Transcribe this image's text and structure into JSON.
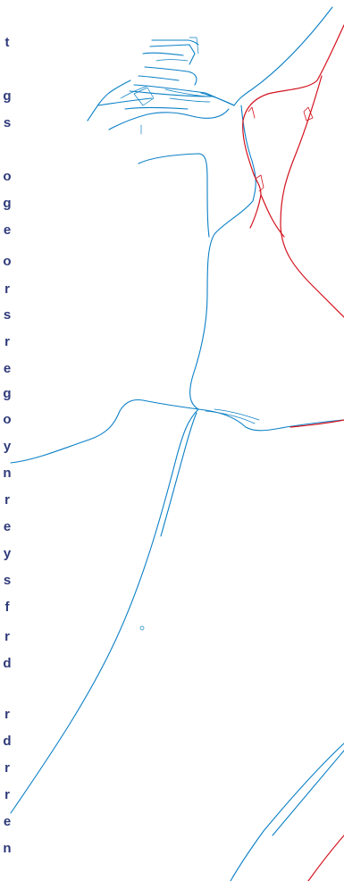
{
  "colors": {
    "blue_network": "#0b80c6",
    "red_network": "#d3121d",
    "label_text": "#2f3a7a",
    "background": "#ffffff"
  },
  "edge_labels": [
    "t",
    "g",
    "s",
    "o",
    "g",
    "e",
    "o",
    "r",
    "s",
    "r",
    "e",
    "g",
    "o",
    "y",
    "n",
    "r",
    "e",
    "y",
    "s",
    "f",
    "r",
    "d",
    "r",
    "d",
    "r",
    "r",
    "e",
    "n"
  ]
}
